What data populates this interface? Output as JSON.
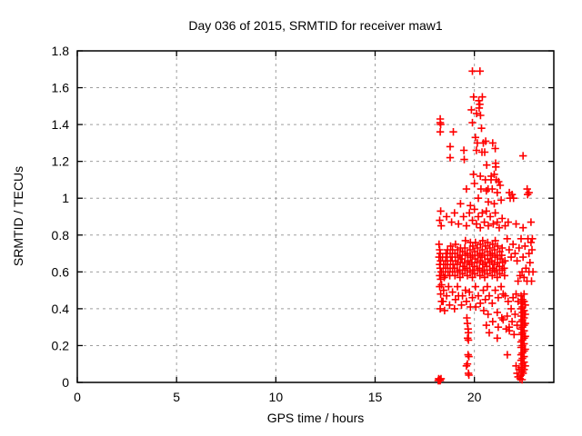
{
  "figure": {
    "background": "#ffffff",
    "marker_color": "#ff0000",
    "grid_color": "#9e9e9e",
    "border_color": "#000000",
    "text_color": "#000000"
  },
  "chart_data": {
    "type": "scatter",
    "title": "Day 036 of 2015, SRMTID for receiver maw1",
    "xlabel": "GPS time / hours",
    "ylabel": "SRMTID / TECUs",
    "xlim": [
      0,
      24
    ],
    "ylim": [
      0,
      1.8
    ],
    "xticks": [
      0,
      5,
      10,
      15,
      20
    ],
    "xtick_labels": [
      "0",
      "5",
      "10",
      "15",
      "20"
    ],
    "yticks": [
      0,
      0.2,
      0.4,
      0.6,
      0.8,
      1.0,
      1.2,
      1.4,
      1.6,
      1.8
    ],
    "ytick_labels": [
      "0",
      "0.2",
      "0.4",
      "0.6",
      "0.8",
      "1",
      "1.2",
      "1.4",
      "1.6",
      "1.8"
    ],
    "grid": true,
    "grid_style": "dashed",
    "legend": false,
    "marker": "plus",
    "points": [
      [
        19.9,
        1.69
      ],
      [
        20.28,
        1.69
      ],
      [
        19.96,
        1.55
      ],
      [
        20.4,
        1.55
      ],
      [
        20.22,
        1.53
      ],
      [
        20.27,
        1.51
      ],
      [
        20.24,
        1.49
      ],
      [
        19.85,
        1.48
      ],
      [
        20.11,
        1.46
      ],
      [
        20.31,
        1.45
      ],
      [
        19.9,
        1.41
      ],
      [
        20.36,
        1.38
      ],
      [
        18.28,
        1.43
      ],
      [
        18.28,
        1.41
      ],
      [
        18.3,
        1.4
      ],
      [
        18.28,
        1.36
      ],
      [
        18.94,
        1.36
      ],
      [
        18.78,
        1.28
      ],
      [
        18.78,
        1.22
      ],
      [
        19.47,
        1.26
      ],
      [
        19.49,
        1.21
      ],
      [
        20.05,
        1.33
      ],
      [
        20.15,
        1.3
      ],
      [
        20.1,
        1.26
      ],
      [
        20.45,
        1.3
      ],
      [
        20.52,
        1.25
      ],
      [
        20.92,
        1.3
      ],
      [
        20.57,
        1.31
      ],
      [
        20.38,
        1.25
      ],
      [
        21.05,
        1.27
      ],
      [
        21.07,
        1.19
      ],
      [
        21.08,
        1.17
      ],
      [
        20.62,
        1.18
      ],
      [
        22.45,
        1.23
      ],
      [
        19.95,
        1.13
      ],
      [
        20.0,
        1.08
      ],
      [
        20.3,
        1.12
      ],
      [
        20.33,
        1.05
      ],
      [
        20.55,
        1.1
      ],
      [
        20.6,
        1.04
      ],
      [
        20.84,
        1.1
      ],
      [
        20.85,
        1.12
      ],
      [
        20.9,
        1.05
      ],
      [
        21.0,
        1.13
      ],
      [
        21.1,
        1.1
      ],
      [
        21.15,
        1.03
      ],
      [
        21.22,
        1.09
      ],
      [
        21.3,
        1.07
      ],
      [
        20.2,
        1.0
      ],
      [
        20.69,
        1.05
      ],
      [
        20.7,
        0.98
      ],
      [
        21.0,
        0.97
      ],
      [
        21.35,
        0.99
      ],
      [
        21.76,
        1.03
      ],
      [
        21.8,
        1.0
      ],
      [
        21.9,
        1.02
      ],
      [
        21.97,
        1.0
      ],
      [
        22.66,
        1.05
      ],
      [
        22.68,
        1.02
      ],
      [
        22.75,
        1.03
      ],
      [
        19.6,
        1.05
      ],
      [
        19.3,
        0.97
      ],
      [
        19.8,
        0.96
      ],
      [
        18.3,
        0.93
      ],
      [
        18.25,
        0.88
      ],
      [
        18.33,
        0.85
      ],
      [
        18.6,
        0.9
      ],
      [
        18.85,
        0.87
      ],
      [
        19.0,
        0.92
      ],
      [
        19.2,
        0.86
      ],
      [
        19.45,
        0.9
      ],
      [
        19.6,
        0.85
      ],
      [
        19.75,
        0.92
      ],
      [
        19.9,
        0.88
      ],
      [
        20.0,
        0.94
      ],
      [
        20.1,
        0.86
      ],
      [
        20.2,
        0.9
      ],
      [
        20.3,
        0.84
      ],
      [
        20.4,
        0.92
      ],
      [
        20.5,
        0.87
      ],
      [
        20.6,
        0.93
      ],
      [
        20.7,
        0.85
      ],
      [
        20.8,
        0.9
      ],
      [
        20.95,
        0.86
      ],
      [
        21.05,
        0.92
      ],
      [
        21.15,
        0.87
      ],
      [
        21.25,
        0.84
      ],
      [
        21.4,
        0.89
      ],
      [
        21.55,
        0.85
      ],
      [
        21.7,
        0.87
      ],
      [
        22.1,
        0.86
      ],
      [
        22.45,
        0.84
      ],
      [
        22.85,
        0.87
      ],
      [
        18.22,
        0.75
      ],
      [
        18.25,
        0.72
      ],
      [
        18.28,
        0.7
      ],
      [
        18.22,
        0.68
      ],
      [
        18.3,
        0.66
      ],
      [
        18.25,
        0.64
      ],
      [
        18.28,
        0.62
      ],
      [
        18.33,
        0.6
      ],
      [
        18.25,
        0.58
      ],
      [
        18.3,
        0.56
      ],
      [
        18.35,
        0.53
      ],
      [
        18.4,
        0.68
      ],
      [
        18.45,
        0.64
      ],
      [
        18.42,
        0.6
      ],
      [
        18.48,
        0.57
      ],
      [
        18.55,
        0.62
      ],
      [
        18.55,
        0.66
      ],
      [
        18.57,
        0.7
      ],
      [
        18.53,
        0.58
      ],
      [
        18.65,
        0.64
      ],
      [
        18.67,
        0.6
      ],
      [
        18.63,
        0.68
      ],
      [
        18.65,
        0.72
      ],
      [
        18.78,
        0.62
      ],
      [
        18.76,
        0.58
      ],
      [
        18.8,
        0.66
      ],
      [
        18.78,
        0.7
      ],
      [
        18.8,
        0.74
      ],
      [
        18.9,
        0.6
      ],
      [
        18.92,
        0.64
      ],
      [
        18.88,
        0.68
      ],
      [
        18.9,
        0.72
      ],
      [
        19.02,
        0.58
      ],
      [
        19.0,
        0.62
      ],
      [
        19.04,
        0.66
      ],
      [
        19.02,
        0.7
      ],
      [
        19.05,
        0.75
      ],
      [
        19.15,
        0.6
      ],
      [
        19.13,
        0.64
      ],
      [
        19.17,
        0.68
      ],
      [
        19.15,
        0.72
      ],
      [
        19.28,
        0.57
      ],
      [
        19.26,
        0.61
      ],
      [
        19.3,
        0.65
      ],
      [
        19.28,
        0.69
      ],
      [
        19.3,
        0.73
      ],
      [
        19.4,
        0.59
      ],
      [
        19.42,
        0.63
      ],
      [
        19.38,
        0.67
      ],
      [
        19.4,
        0.71
      ],
      [
        19.52,
        0.61
      ],
      [
        19.5,
        0.65
      ],
      [
        19.54,
        0.69
      ],
      [
        19.52,
        0.73
      ],
      [
        19.55,
        0.77
      ],
      [
        19.65,
        0.58
      ],
      [
        19.63,
        0.62
      ],
      [
        19.67,
        0.66
      ],
      [
        19.65,
        0.7
      ],
      [
        19.78,
        0.6
      ],
      [
        19.76,
        0.64
      ],
      [
        19.8,
        0.68
      ],
      [
        19.78,
        0.72
      ],
      [
        19.8,
        0.76
      ],
      [
        19.9,
        0.57
      ],
      [
        19.92,
        0.61
      ],
      [
        19.88,
        0.65
      ],
      [
        19.9,
        0.69
      ],
      [
        19.92,
        0.74
      ],
      [
        20.02,
        0.59
      ],
      [
        20.0,
        0.63
      ],
      [
        20.04,
        0.67
      ],
      [
        20.02,
        0.71
      ],
      [
        20.05,
        0.76
      ],
      [
        20.15,
        0.61
      ],
      [
        20.13,
        0.65
      ],
      [
        20.17,
        0.69
      ],
      [
        20.15,
        0.73
      ],
      [
        20.28,
        0.58
      ],
      [
        20.26,
        0.62
      ],
      [
        20.3,
        0.66
      ],
      [
        20.28,
        0.7
      ],
      [
        20.3,
        0.75
      ],
      [
        20.4,
        0.6
      ],
      [
        20.42,
        0.64
      ],
      [
        20.38,
        0.68
      ],
      [
        20.4,
        0.72
      ],
      [
        20.42,
        0.77
      ],
      [
        20.52,
        0.57
      ],
      [
        20.5,
        0.61
      ],
      [
        20.54,
        0.65
      ],
      [
        20.52,
        0.69
      ],
      [
        20.55,
        0.74
      ],
      [
        20.65,
        0.59
      ],
      [
        20.63,
        0.63
      ],
      [
        20.67,
        0.67
      ],
      [
        20.65,
        0.71
      ],
      [
        20.67,
        0.76
      ],
      [
        20.78,
        0.61
      ],
      [
        20.76,
        0.65
      ],
      [
        20.8,
        0.69
      ],
      [
        20.78,
        0.73
      ],
      [
        20.9,
        0.58
      ],
      [
        20.92,
        0.62
      ],
      [
        20.88,
        0.66
      ],
      [
        20.9,
        0.7
      ],
      [
        20.92,
        0.75
      ],
      [
        21.02,
        0.6
      ],
      [
        21.0,
        0.64
      ],
      [
        21.04,
        0.68
      ],
      [
        21.02,
        0.72
      ],
      [
        21.05,
        0.77
      ],
      [
        21.15,
        0.57
      ],
      [
        21.13,
        0.61
      ],
      [
        21.17,
        0.65
      ],
      [
        21.15,
        0.69
      ],
      [
        21.17,
        0.74
      ],
      [
        21.28,
        0.59
      ],
      [
        21.26,
        0.63
      ],
      [
        21.3,
        0.67
      ],
      [
        21.28,
        0.71
      ],
      [
        21.4,
        0.61
      ],
      [
        21.42,
        0.65
      ],
      [
        21.38,
        0.69
      ],
      [
        21.4,
        0.73
      ],
      [
        21.52,
        0.58
      ],
      [
        21.5,
        0.62
      ],
      [
        21.54,
        0.66
      ],
      [
        18.25,
        0.52
      ],
      [
        18.3,
        0.48
      ],
      [
        18.35,
        0.44
      ],
      [
        18.28,
        0.4
      ],
      [
        18.45,
        0.5
      ],
      [
        18.42,
        0.44
      ],
      [
        18.5,
        0.39
      ],
      [
        18.6,
        0.47
      ],
      [
        18.7,
        0.52
      ],
      [
        18.75,
        0.42
      ],
      [
        18.9,
        0.49
      ],
      [
        19.0,
        0.4
      ],
      [
        19.05,
        0.45
      ],
      [
        19.15,
        0.52
      ],
      [
        19.2,
        0.47
      ],
      [
        19.35,
        0.42
      ],
      [
        19.4,
        0.47
      ],
      [
        19.55,
        0.5
      ],
      [
        19.6,
        0.44
      ],
      [
        19.75,
        0.49
      ],
      [
        19.8,
        0.41
      ],
      [
        19.9,
        0.46
      ],
      [
        20.05,
        0.52
      ],
      [
        20.07,
        0.41
      ],
      [
        20.2,
        0.47
      ],
      [
        20.3,
        0.43
      ],
      [
        20.45,
        0.5
      ],
      [
        20.55,
        0.45
      ],
      [
        20.65,
        0.52
      ],
      [
        20.75,
        0.47
      ],
      [
        20.9,
        0.43
      ],
      [
        21.05,
        0.5
      ],
      [
        21.2,
        0.46
      ],
      [
        21.35,
        0.52
      ],
      [
        21.45,
        0.48
      ],
      [
        20.47,
        0.39
      ],
      [
        20.69,
        0.37
      ],
      [
        21.15,
        0.38
      ],
      [
        21.38,
        0.35
      ],
      [
        20.92,
        0.33
      ],
      [
        21.45,
        0.34
      ],
      [
        21.2,
        0.3
      ],
      [
        21.6,
        0.29
      ],
      [
        21.76,
        0.28
      ],
      [
        21.15,
        0.24
      ],
      [
        20.6,
        0.31
      ],
      [
        20.75,
        0.27
      ],
      [
        19.62,
        0.35
      ],
      [
        19.65,
        0.32
      ],
      [
        19.68,
        0.29
      ],
      [
        19.7,
        0.27
      ],
      [
        19.66,
        0.24
      ],
      [
        19.7,
        0.23
      ],
      [
        19.68,
        0.15
      ],
      [
        19.72,
        0.14
      ],
      [
        19.65,
        0.1
      ],
      [
        19.7,
        0.05
      ],
      [
        19.6,
        0.09
      ],
      [
        19.72,
        0.04
      ],
      [
        18.18,
        0.01
      ],
      [
        18.2,
        0.02
      ],
      [
        18.22,
        0.01
      ],
      [
        18.25,
        0.015
      ],
      [
        18.28,
        0.01
      ],
      [
        18.32,
        0.02
      ],
      [
        21.65,
        0.78
      ],
      [
        21.75,
        0.72
      ],
      [
        21.85,
        0.68
      ],
      [
        21.95,
        0.75
      ],
      [
        22.05,
        0.7
      ],
      [
        22.15,
        0.66
      ],
      [
        22.25,
        0.73
      ],
      [
        22.35,
        0.78
      ],
      [
        22.45,
        0.68
      ],
      [
        22.55,
        0.74
      ],
      [
        22.6,
        0.62
      ],
      [
        22.7,
        0.78
      ],
      [
        22.75,
        0.7
      ],
      [
        22.8,
        0.65
      ],
      [
        22.85,
        0.76
      ],
      [
        22.9,
        0.72
      ],
      [
        22.95,
        0.6
      ],
      [
        22.4,
        0.6
      ],
      [
        22.5,
        0.57
      ],
      [
        22.3,
        0.58
      ],
      [
        22.2,
        0.55
      ],
      [
        22.65,
        0.55
      ],
      [
        22.88,
        0.55
      ],
      [
        22.92,
        0.78
      ],
      [
        22.75,
        0.6
      ],
      [
        21.55,
        0.47
      ],
      [
        21.7,
        0.44
      ],
      [
        21.85,
        0.4
      ],
      [
        21.95,
        0.46
      ],
      [
        22.1,
        0.48
      ],
      [
        22.2,
        0.44
      ],
      [
        21.65,
        0.36
      ],
      [
        21.9,
        0.33
      ],
      [
        22.05,
        0.37
      ],
      [
        21.75,
        0.3
      ],
      [
        22.15,
        0.31
      ],
      [
        22.0,
        0.26
      ],
      [
        21.66,
        0.15
      ],
      [
        22.35,
        0.47
      ],
      [
        22.35,
        0.43
      ],
      [
        22.35,
        0.4
      ],
      [
        22.35,
        0.36
      ],
      [
        22.35,
        0.33
      ],
      [
        22.35,
        0.29
      ],
      [
        22.35,
        0.26
      ],
      [
        22.35,
        0.22
      ],
      [
        22.35,
        0.19
      ],
      [
        22.35,
        0.15
      ],
      [
        22.35,
        0.12
      ],
      [
        22.35,
        0.08
      ],
      [
        22.42,
        0.45
      ],
      [
        22.42,
        0.41
      ],
      [
        22.42,
        0.38
      ],
      [
        22.42,
        0.34
      ],
      [
        22.42,
        0.3
      ],
      [
        22.42,
        0.27
      ],
      [
        22.42,
        0.23
      ],
      [
        22.42,
        0.2
      ],
      [
        22.42,
        0.16
      ],
      [
        22.42,
        0.13
      ],
      [
        22.42,
        0.1
      ],
      [
        22.42,
        0.06
      ],
      [
        22.5,
        0.48
      ],
      [
        22.5,
        0.44
      ],
      [
        22.5,
        0.39
      ],
      [
        22.5,
        0.35
      ],
      [
        22.5,
        0.31
      ],
      [
        22.5,
        0.28
      ],
      [
        22.5,
        0.24
      ],
      [
        22.5,
        0.21
      ],
      [
        22.5,
        0.17
      ],
      [
        22.5,
        0.14
      ],
      [
        22.5,
        0.11
      ],
      [
        22.5,
        0.07
      ],
      [
        22.56,
        0.42
      ],
      [
        22.56,
        0.37
      ],
      [
        22.56,
        0.32
      ],
      [
        22.56,
        0.25
      ],
      [
        22.56,
        0.18
      ],
      [
        22.56,
        0.09
      ],
      [
        22.1,
        0.09
      ],
      [
        22.15,
        0.05
      ],
      [
        22.2,
        0.03
      ],
      [
        22.25,
        0.07
      ],
      [
        22.3,
        0.02
      ],
      [
        22.35,
        0.04
      ],
      [
        22.4,
        0.015
      ],
      [
        22.45,
        0.05
      ]
    ]
  }
}
